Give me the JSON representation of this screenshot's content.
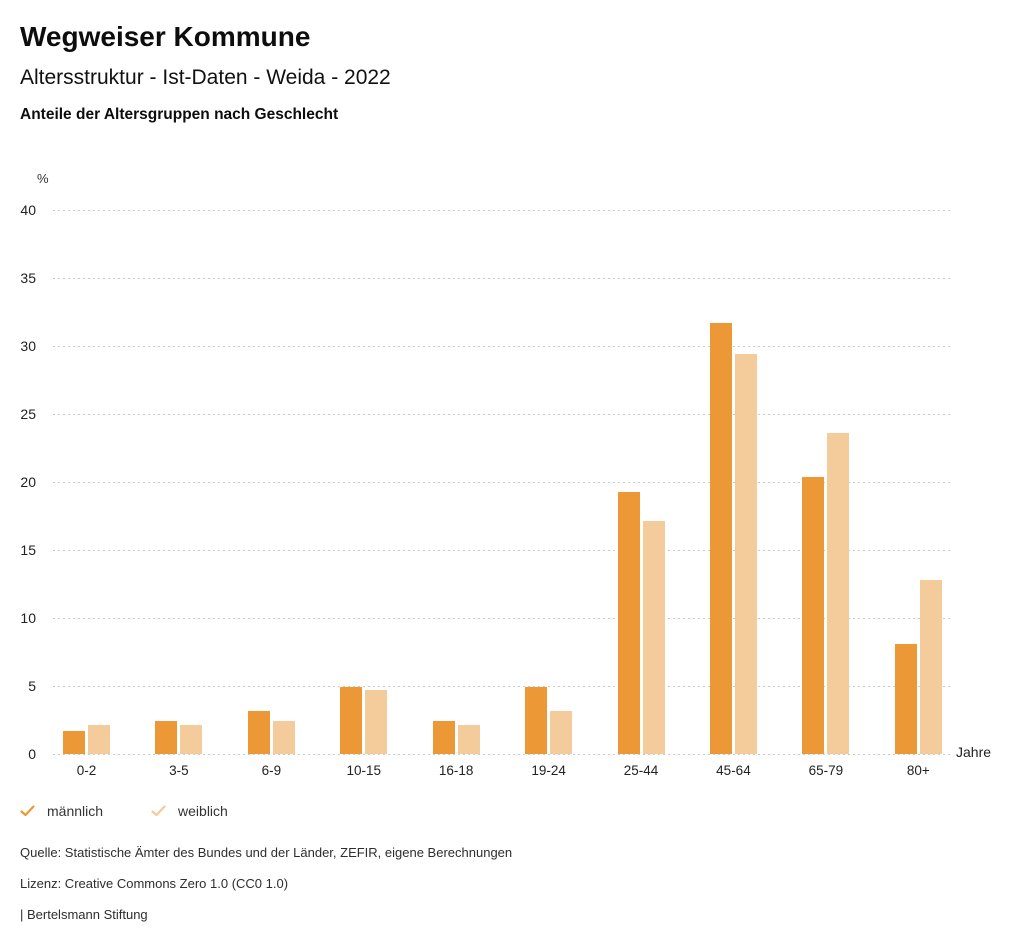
{
  "header": {
    "app_title": "Wegweiser Kommune",
    "subtitle": "Altersstruktur - Ist-Daten - Weida - 2022",
    "chart_heading": "Anteile der Altersgruppen nach Geschlecht"
  },
  "chart_data": {
    "type": "bar",
    "title": "Anteile der Altersgruppen nach Geschlecht",
    "y_axis_unit": "%",
    "x_axis_label": "Jahre",
    "categories": [
      "0-2",
      "3-5",
      "6-9",
      "10-15",
      "16-18",
      "19-24",
      "25-44",
      "45-64",
      "65-79",
      "80+"
    ],
    "series": [
      {
        "name": "männlich",
        "color": "#ED9837",
        "values": [
          1.7,
          2.4,
          3.2,
          4.9,
          2.4,
          4.9,
          19.3,
          31.7,
          20.4,
          8.1
        ]
      },
      {
        "name": "weiblich",
        "color": "#F4CB9B",
        "values": [
          2.1,
          2.1,
          2.4,
          4.7,
          2.1,
          3.2,
          17.1,
          29.4,
          23.6,
          12.8
        ]
      }
    ],
    "ylim": [
      0,
      40
    ],
    "y_ticks": [
      0,
      5,
      10,
      15,
      20,
      25,
      30,
      35,
      40
    ],
    "grid": "horizontal-dotted",
    "gridline_color": "#C9C9C9",
    "legend_position": "bottom-left"
  },
  "footer": {
    "source": "Quelle: Statistische Ämter des Bundes und der Länder, ZEFIR, eigene Berechnungen",
    "license": "Lizenz: Creative Commons Zero 1.0 (CC0 1.0)",
    "branding": "| Bertelsmann Stiftung"
  }
}
